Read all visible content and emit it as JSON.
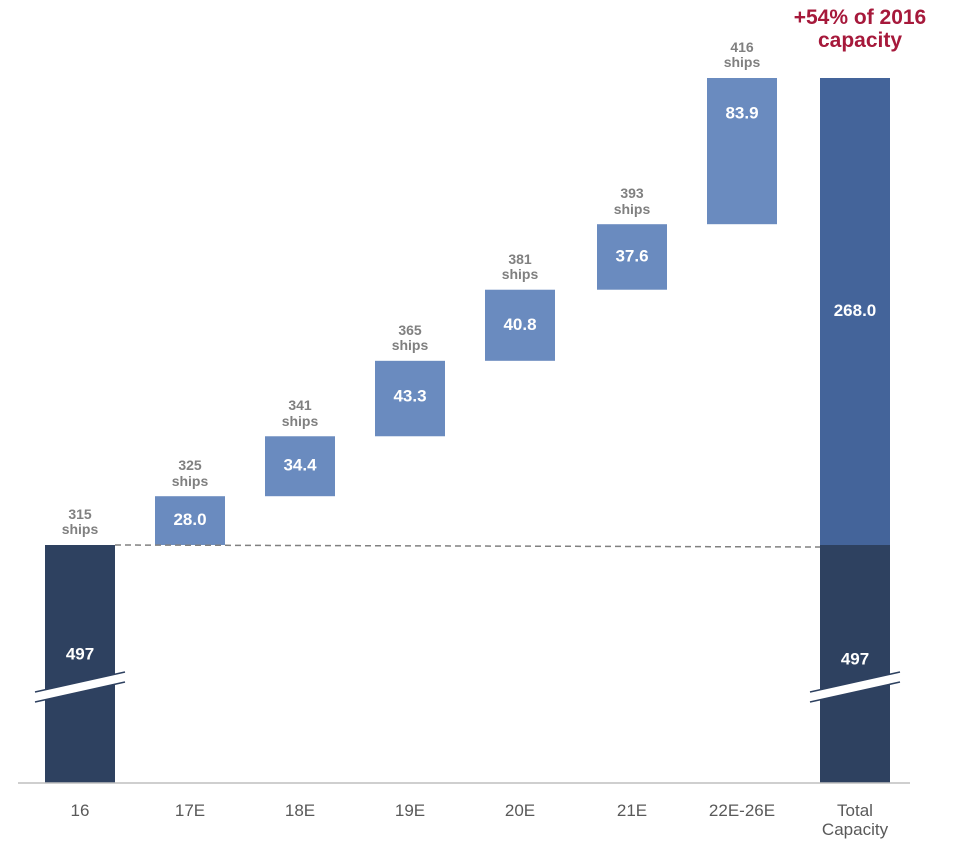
{
  "chart_data": {
    "type": "waterfall",
    "categories": [
      "16",
      "17E",
      "18E",
      "19E",
      "20E",
      "21E",
      "22E-26E",
      "Total Capacity"
    ],
    "values": [
      497,
      28.0,
      34.4,
      43.3,
      40.8,
      37.6,
      83.9,
      268.0
    ],
    "value_labels": [
      "497",
      "28.0",
      "34.4",
      "43.3",
      "40.8",
      "37.6",
      "83.9",
      "268.0"
    ],
    "total_base": 497,
    "ship_labels": [
      "315 ships",
      "325 ships",
      "341 ships",
      "365 ships",
      "381 ships",
      "393 ships",
      "416 ships",
      null
    ],
    "annotation": "+54% of 2016 capacity",
    "base_color": "#2e4160",
    "increase_color": "#6a8bbf",
    "total_color": "#44649a"
  }
}
